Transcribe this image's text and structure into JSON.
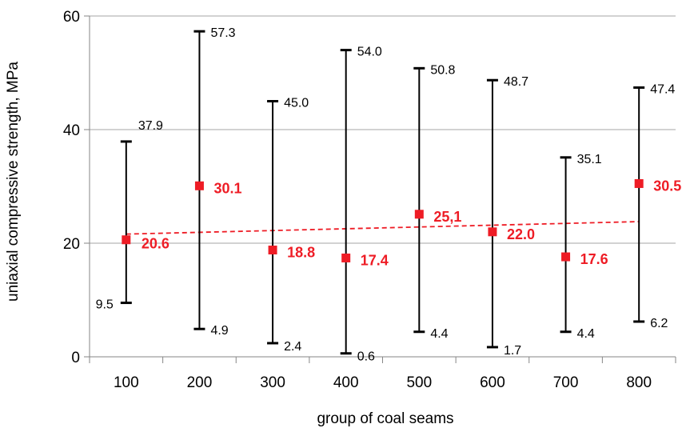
{
  "chart_data": {
    "type": "scatter",
    "title": "",
    "xlabel": "group of coal seams",
    "ylabel": "uniaxial compressive strength, MPa",
    "ylim": [
      0,
      60
    ],
    "yticks": [
      "0",
      "20",
      "40",
      "60"
    ],
    "grid": "horizontal",
    "categories": [
      "100",
      "200",
      "300",
      "400",
      "500",
      "600",
      "700",
      "800"
    ],
    "mean": [
      20.6,
      30.1,
      18.8,
      17.4,
      25.1,
      22.0,
      17.6,
      30.5
    ],
    "mean_labels": [
      "20.6",
      "30.1",
      "18.8",
      "17.4",
      "25,1",
      "22.0",
      "17.6",
      "30.5"
    ],
    "max": [
      37.9,
      57.3,
      45.0,
      54.0,
      50.8,
      48.7,
      35.1,
      47.4
    ],
    "max_labels": [
      "37.9",
      "57.3",
      "45.0",
      "54.0",
      "50.8",
      "48.7",
      "35.1",
      "47.4"
    ],
    "min": [
      9.5,
      4.9,
      2.4,
      0.6,
      4.4,
      1.7,
      4.4,
      6.2
    ],
    "min_labels": [
      "9.5",
      "4.9",
      "2.4",
      "0.6",
      "4.4",
      "1.7",
      "4.4",
      "6.2"
    ],
    "trendline": {
      "style": "dashed",
      "y_start": 21.6,
      "y_end": 23.8
    },
    "colors": {
      "mean": "#ee1c25",
      "trend": "#ee1c25",
      "errorbar": "#000000",
      "grid": "#a6a6a6",
      "axis": "#868686"
    }
  }
}
